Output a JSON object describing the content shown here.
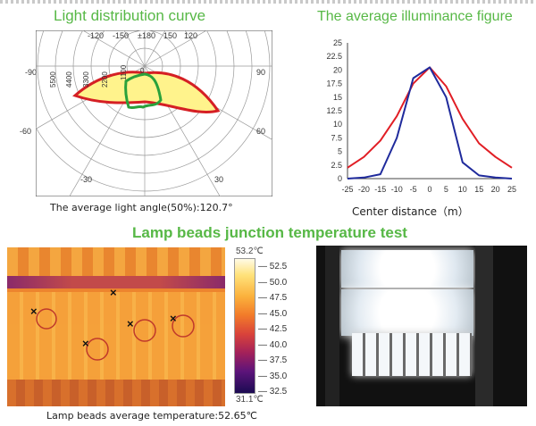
{
  "titles": {
    "distribution": "Light distribution curve",
    "illuminance": "The average illuminance figure",
    "junction": "Lamp beads junction temperature test"
  },
  "captions": {
    "angle": "The average light angle(50%):120.7°",
    "center_distance": "Center distance（m）",
    "temperature": "Lamp beads average temperature:52.65℃"
  },
  "polar": {
    "top_angles": [
      "-120",
      "-150",
      "±180",
      "150",
      "120"
    ],
    "side_angles": [
      "-90",
      "90",
      "-60",
      "60",
      "-30",
      "30"
    ],
    "radial_labels": [
      "5500",
      "4400",
      "3300",
      "2200",
      "1100",
      "0"
    ],
    "colors": {
      "c0": "#d51f24",
      "c90": "#2aa13b",
      "fill": "#fff38c"
    }
  },
  "chart_data": {
    "type": "line",
    "x": [
      -25,
      -20,
      -15,
      -10,
      -5,
      0,
      5,
      10,
      15,
      20,
      25
    ],
    "xticks": [
      "-25",
      "-20",
      "-15",
      "-10",
      "-5",
      "0",
      "5",
      "10",
      "15",
      "20",
      "25"
    ],
    "yticks": [
      "0",
      "2.5",
      "5",
      "7.5",
      "10",
      "12.5",
      "15",
      "17.5",
      "20",
      "22.5",
      "25"
    ],
    "ylim": [
      0,
      25
    ],
    "xlim": [
      -25,
      25
    ],
    "xlabel": "Center distance（m）",
    "series": [
      {
        "color": "#e11e25",
        "values": [
          2.0,
          4.0,
          7.0,
          11.5,
          17.5,
          20.5,
          17.0,
          11.0,
          6.5,
          4.0,
          2.0
        ]
      },
      {
        "color": "#1f2a9c",
        "values": [
          0.0,
          0.2,
          0.8,
          7.5,
          18.5,
          20.5,
          15.0,
          3.0,
          0.6,
          0.2,
          0.0
        ]
      }
    ]
  },
  "thermal": {
    "scale_max": "53.2℃",
    "scale_min": "31.1℃",
    "scale_ticks": [
      "52.5",
      "50.0",
      "47.5",
      "45.0",
      "42.5",
      "40.0",
      "37.5",
      "35.0",
      "32.5"
    ],
    "markers": [
      "×",
      "×",
      "×",
      "×",
      "×"
    ]
  }
}
